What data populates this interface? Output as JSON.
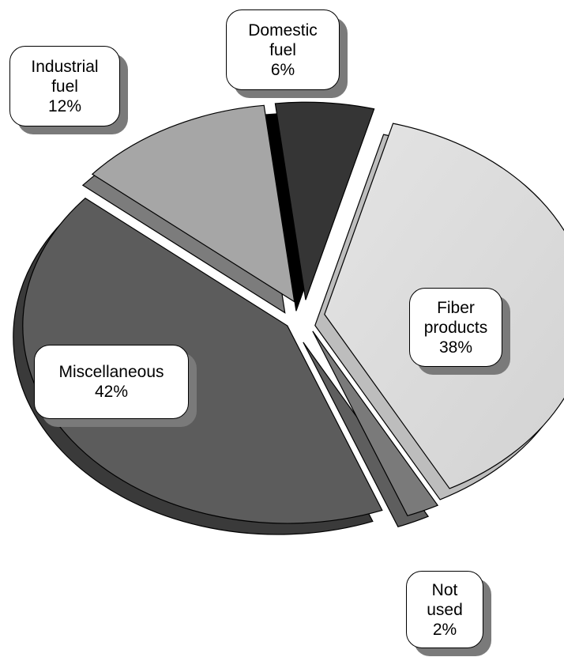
{
  "chart_data": {
    "type": "pie",
    "title": "",
    "slices": [
      {
        "label": [
          "Fiber",
          "products"
        ],
        "value": 38,
        "value_label": "38%",
        "color": "#dcdcdc"
      },
      {
        "label": [
          "Not",
          "used"
        ],
        "value": 2,
        "value_label": "2%",
        "color": "#7a7a7a"
      },
      {
        "label": [
          "Miscellaneous"
        ],
        "value": 42,
        "value_label": "42%",
        "color": "#5c5c5c"
      },
      {
        "label": [
          "Industrial",
          "fuel"
        ],
        "value": 12,
        "value_label": "12%",
        "color": "#a6a6a6"
      },
      {
        "label": [
          "Domestic",
          "fuel"
        ],
        "value": 6,
        "value_label": "6%",
        "color": "#353535"
      }
    ],
    "style": "3d-exploded"
  }
}
